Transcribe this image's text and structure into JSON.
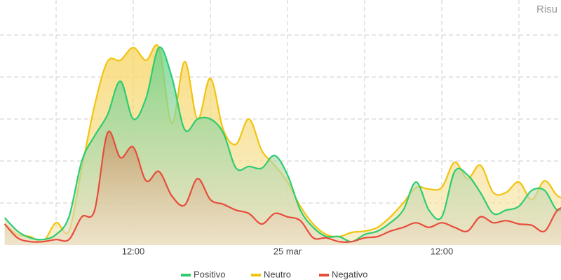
{
  "chart_data": {
    "type": "area",
    "title": "Risu",
    "categories": [
      null,
      null,
      null,
      null,
      null,
      null,
      null,
      null,
      null,
      null,
      "12:00",
      null,
      null,
      null,
      null,
      null,
      null,
      null,
      null,
      null,
      null,
      null,
      "25 mar",
      null,
      null,
      null,
      null,
      null,
      null,
      null,
      null,
      null,
      null,
      null,
      "12:00",
      null,
      null,
      null,
      null,
      null,
      null,
      null,
      null,
      null,
      null
    ],
    "series": [
      {
        "name": "Positivo",
        "color": "#2ecc71",
        "values": [
          6.5,
          3.3,
          1.7,
          1.3,
          2.5,
          6.7,
          20,
          26,
          31,
          39,
          30,
          35,
          47,
          40,
          27.5,
          30,
          30,
          26.7,
          18.3,
          18.7,
          18.3,
          21.3,
          16.7,
          8.3,
          4.2,
          2,
          2,
          0.8,
          2.5,
          3.3,
          5.3,
          8.3,
          15,
          8.3,
          6.7,
          17.5,
          16.7,
          12.5,
          7.5,
          8.3,
          9.2,
          13,
          13,
          8.3,
          10
        ]
      },
      {
        "name": "Neutro",
        "color": "#f1c40f",
        "values": [
          5,
          2.5,
          2,
          0.8,
          5.3,
          3.3,
          18.3,
          33.3,
          43.7,
          44,
          47,
          44,
          47,
          29,
          43.7,
          30,
          39.7,
          27.5,
          24,
          30,
          22.5,
          19,
          15,
          9.2,
          5,
          2.5,
          2,
          3,
          3.3,
          4.2,
          6.7,
          10,
          13.7,
          13.3,
          13.7,
          19.7,
          15.8,
          19,
          12.5,
          12.5,
          15,
          10.8,
          15.3,
          11.7,
          10.8
        ]
      },
      {
        "name": "Negativo",
        "color": "#e74c3c",
        "values": [
          5,
          1.7,
          0.8,
          0.8,
          1.3,
          1.3,
          6.7,
          8.3,
          26.7,
          20.8,
          23.3,
          15.3,
          17.5,
          11.7,
          9.5,
          15.8,
          10.8,
          9.7,
          8.3,
          7.5,
          5,
          7.5,
          6.7,
          5.8,
          1.7,
          1.7,
          0.8,
          0.8,
          1.7,
          2,
          3.3,
          4.2,
          5.3,
          4.2,
          5.3,
          4.2,
          3.3,
          6.7,
          5.3,
          5.8,
          5,
          4.7,
          3.3,
          8.3,
          9.2
        ]
      }
    ],
    "ylim": [
      0,
      55
    ],
    "yticks": [
      10,
      20,
      30,
      40,
      50
    ],
    "show_ytick_labels": false,
    "grid": true,
    "legend": "bottom"
  }
}
